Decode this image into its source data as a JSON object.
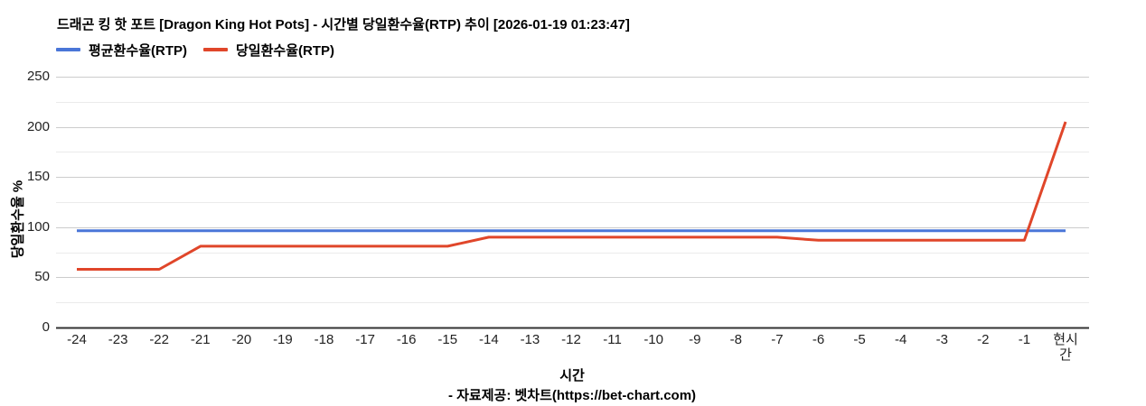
{
  "title": "드래곤 킹 핫 포트 [Dragon King Hot Pots] - 시간별 당일환수율(RTP) 추이 [2026-01-19 01:23:47]",
  "legend": {
    "avg_label": "평균환수율(RTP)",
    "daily_label": "당일환수율(RTP)"
  },
  "footer": "- 자료제공: 벳차트(https://bet-chart.com)",
  "colors": {
    "avg_line": "#4a76d8",
    "daily_line": "#e0462a",
    "grid_major": "#cccccc",
    "grid_minor": "#ebebeb",
    "axis_baseline": "#333333",
    "tick_text": "#222222"
  },
  "chart_data": {
    "type": "line",
    "title": "드래곤 킹 핫 포트 [Dragon King Hot Pots] - 시간별 당일환수율(RTP) 추이 [2026-01-19 01:23:47]",
    "xlabel": "시간",
    "ylabel": "당일환수율 %",
    "ylim": [
      0,
      250
    ],
    "y_ticks": [
      0,
      50,
      100,
      150,
      200,
      250
    ],
    "y_minor_gridline_step": 25,
    "grid": "on",
    "legend_position": "top-left",
    "categories": [
      "-24",
      "-23",
      "-22",
      "-21",
      "-20",
      "-19",
      "-18",
      "-17",
      "-16",
      "-15",
      "-14",
      "-13",
      "-12",
      "-11",
      "-10",
      "-9",
      "-8",
      "-7",
      "-6",
      "-5",
      "-4",
      "-3",
      "-2",
      "-1",
      "현시간"
    ],
    "series": [
      {
        "name": "평균환수율(RTP)",
        "color": "#4a76d8",
        "values": [
          96.5,
          96.5,
          96.5,
          96.5,
          96.5,
          96.5,
          96.5,
          96.5,
          96.5,
          96.5,
          96.5,
          96.5,
          96.5,
          96.5,
          96.5,
          96.5,
          96.5,
          96.5,
          96.5,
          96.5,
          96.5,
          96.5,
          96.5,
          96.5,
          96.5
        ]
      },
      {
        "name": "당일환수율(RTP)",
        "color": "#e0462a",
        "values": [
          58,
          58,
          58,
          81,
          81,
          81,
          81,
          81,
          81,
          81,
          90,
          90,
          90,
          90,
          90,
          90,
          90,
          90,
          87,
          87,
          87,
          87,
          87,
          87,
          205
        ]
      }
    ]
  }
}
